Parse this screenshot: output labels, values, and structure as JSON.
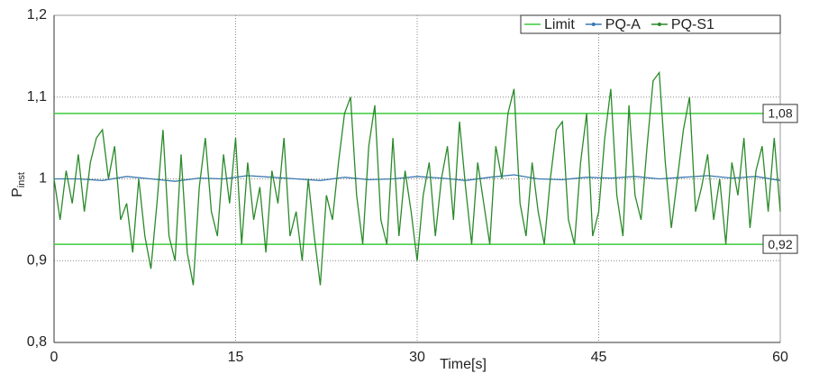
{
  "chart_data": {
    "type": "line",
    "xlabel": "Time[s]",
    "ylabel": "P",
    "ylabel_sub": "inst",
    "xlim": [
      0,
      60
    ],
    "xticks": [
      0,
      15,
      30,
      45,
      60
    ],
    "ylim": [
      0.8,
      1.2
    ],
    "yticks": [
      {
        "value": 0.8,
        "label": "0,8"
      },
      {
        "value": 0.9,
        "label": "0,9"
      },
      1,
      {
        "value": 1.1,
        "label": "1,1"
      },
      {
        "value": 1.2,
        "label": "1,2"
      }
    ],
    "grid": true,
    "legend": "top-right",
    "series": [
      {
        "name": "Limit",
        "color": "#3ccc3c",
        "values": [
          1.08,
          0.92
        ],
        "value_labels": [
          "1,08",
          "0,92"
        ]
      },
      {
        "name": "PQ-A",
        "color": "#3a78b0",
        "x": [
          0,
          2,
          4,
          6,
          8,
          10,
          12,
          14,
          16,
          18,
          20,
          22,
          24,
          26,
          28,
          30,
          32,
          34,
          36,
          38,
          40,
          42,
          44,
          46,
          48,
          50,
          52,
          54,
          56,
          58,
          60
        ],
        "values": [
          1.0,
          1.0,
          0.998,
          1.003,
          1.0,
          0.997,
          1.001,
          1.0,
          1.004,
          1.002,
          1.0,
          0.998,
          1.002,
          0.999,
          1.0,
          1.003,
          1.001,
          0.998,
          1.002,
          1.005,
          1.0,
          0.999,
          1.002,
          1.001,
          1.003,
          1.0,
          1.002,
          1.004,
          1.001,
          1.003,
          0.998
        ]
      },
      {
        "name": "PQ-S1",
        "color": "#2a8a2a",
        "x": [
          0,
          0.5,
          1,
          1.5,
          2,
          2.5,
          3,
          3.5,
          4,
          4.5,
          5,
          5.5,
          6,
          6.5,
          7,
          7.5,
          8,
          8.5,
          9,
          9.5,
          10,
          10.5,
          11,
          11.5,
          12,
          12.5,
          13,
          13.5,
          14,
          14.5,
          15,
          15.5,
          16,
          16.5,
          17,
          17.5,
          18,
          18.5,
          19,
          19.5,
          20,
          20.5,
          21,
          21.5,
          22,
          22.5,
          23,
          23.5,
          24,
          24.5,
          25,
          25.5,
          26,
          26.5,
          27,
          27.5,
          28,
          28.5,
          29,
          29.5,
          30,
          30.5,
          31,
          31.5,
          32,
          32.5,
          33,
          33.5,
          34,
          34.5,
          35,
          35.5,
          36,
          36.5,
          37,
          37.5,
          38,
          38.5,
          39,
          39.5,
          40,
          40.5,
          41,
          41.5,
          42,
          42.5,
          43,
          43.5,
          44,
          44.5,
          45,
          45.5,
          46,
          46.5,
          47,
          47.5,
          48,
          48.5,
          49,
          49.5,
          50,
          50.5,
          51,
          51.5,
          52,
          52.5,
          53,
          53.5,
          54,
          54.5,
          55,
          55.5,
          56,
          56.5,
          57,
          57.5,
          58,
          58.5,
          59,
          59.5,
          60
        ],
        "values": [
          1.0,
          0.95,
          1.01,
          0.97,
          1.03,
          0.96,
          1.02,
          1.05,
          1.06,
          1.0,
          1.04,
          0.95,
          0.97,
          0.91,
          1.0,
          0.93,
          0.89,
          0.97,
          1.06,
          0.93,
          0.9,
          1.03,
          0.91,
          0.87,
          0.99,
          1.05,
          0.96,
          0.93,
          1.03,
          0.97,
          1.05,
          0.92,
          1.02,
          0.95,
          0.99,
          0.91,
          1.01,
          0.97,
          1.05,
          0.93,
          0.96,
          0.9,
          1.0,
          0.93,
          0.87,
          0.98,
          0.95,
          1.02,
          1.08,
          1.1,
          0.98,
          0.92,
          1.04,
          1.09,
          0.95,
          0.92,
          1.05,
          0.93,
          1.01,
          0.96,
          0.9,
          0.98,
          1.02,
          0.93,
          1.0,
          1.04,
          0.95,
          1.07,
          0.99,
          0.92,
          1.02,
          0.97,
          0.92,
          1.04,
          1.0,
          1.08,
          1.11,
          0.97,
          0.93,
          1.02,
          0.96,
          0.92,
          1.0,
          1.06,
          1.07,
          0.95,
          0.92,
          1.02,
          1.08,
          0.93,
          0.96,
          1.05,
          1.11,
          0.98,
          0.93,
          1.09,
          0.98,
          0.95,
          1.04,
          1.12,
          1.13,
          1.02,
          0.94,
          1.0,
          1.06,
          1.1,
          0.96,
          0.99,
          1.03,
          0.95,
          1.0,
          0.92,
          1.02,
          0.98,
          1.05,
          0.94,
          1.01,
          1.04,
          0.96,
          1.05,
          0.96
        ]
      }
    ]
  }
}
